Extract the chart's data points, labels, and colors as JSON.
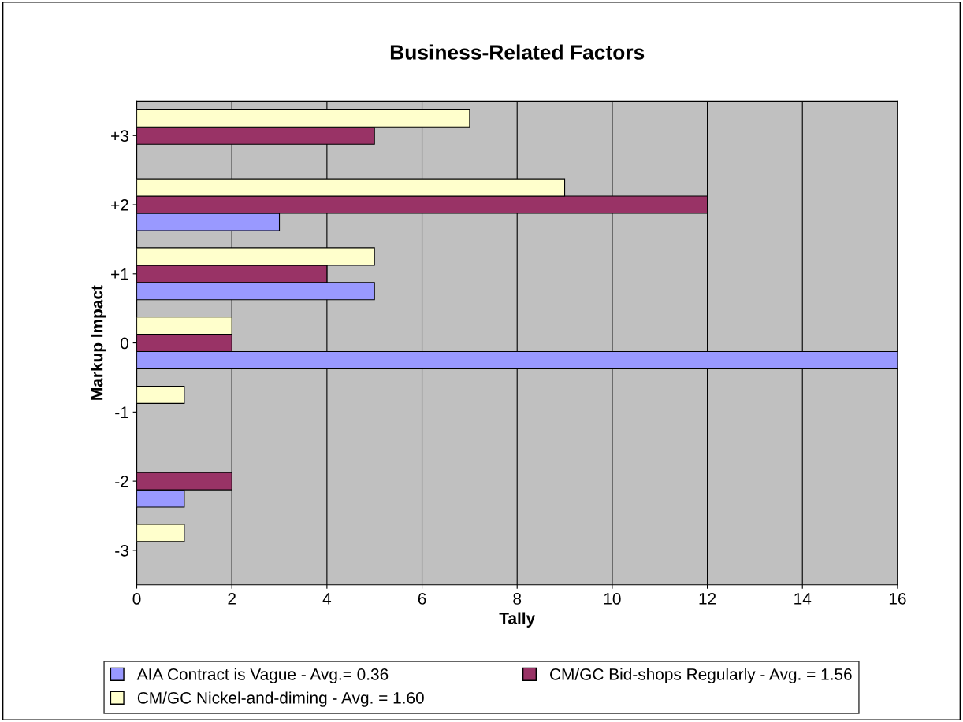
{
  "chart_data": {
    "type": "bar",
    "orientation": "horizontal",
    "title": "Business-Related Factors",
    "xlabel": "Tally",
    "ylabel": "Markup Impact",
    "categories": [
      "+3",
      "+2",
      "+1",
      "0",
      "-1",
      "-2",
      "-3"
    ],
    "series": [
      {
        "name": "AIA Contract is Vague - Avg.= 0.36",
        "color": "#9999ff",
        "values": [
          0,
          3,
          5,
          16,
          0,
          1,
          0
        ]
      },
      {
        "name": "CM/GC Bid-shops Regularly - Avg. = 1.56",
        "color": "#993366",
        "values": [
          5,
          12,
          4,
          2,
          0,
          2,
          0
        ]
      },
      {
        "name": "CM/GC Nickel-and-diming - Avg. = 1.60",
        "color": "#ffffcc",
        "values": [
          7,
          9,
          5,
          2,
          1,
          0,
          1
        ]
      }
    ],
    "xlim": [
      0,
      16
    ],
    "xticks": [
      0,
      2,
      4,
      6,
      8,
      10,
      12,
      14,
      16
    ],
    "grid": "x",
    "legend": "bottom"
  }
}
